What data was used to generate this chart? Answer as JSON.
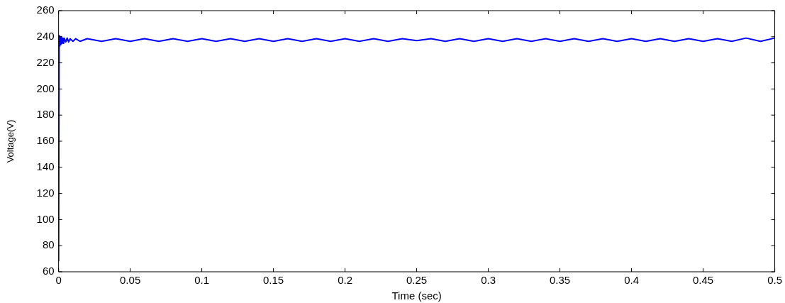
{
  "chart_data": {
    "type": "line",
    "xlabel": "Time (sec)",
    "ylabel": "Voltage(V)",
    "xlim": [
      0,
      0.5
    ],
    "ylim": [
      60,
      260
    ],
    "xticks": [
      0,
      0.05,
      0.1,
      0.15,
      0.2,
      0.25,
      0.3,
      0.35,
      0.4,
      0.45,
      0.5
    ],
    "yticks": [
      60,
      80,
      100,
      120,
      140,
      160,
      180,
      200,
      220,
      240,
      260
    ],
    "grid": false,
    "legend": false,
    "marker": "none",
    "line_style": "solid",
    "series": [
      {
        "color": "#0000ff",
        "x": [
          0,
          0.0004,
          0.0008,
          0.0012,
          0.0016,
          0.002,
          0.0025,
          0.003,
          0.0035,
          0.004,
          0.005,
          0.006,
          0.007,
          0.008,
          0.01,
          0.012,
          0.015,
          0.02,
          0.03,
          0.04,
          0.05,
          0.06,
          0.07,
          0.08,
          0.09,
          0.1,
          0.11,
          0.12,
          0.13,
          0.14,
          0.15,
          0.16,
          0.17,
          0.18,
          0.19,
          0.2,
          0.21,
          0.22,
          0.23,
          0.24,
          0.25,
          0.26,
          0.27,
          0.28,
          0.29,
          0.3,
          0.31,
          0.32,
          0.33,
          0.34,
          0.35,
          0.36,
          0.37,
          0.38,
          0.39,
          0.4,
          0.41,
          0.42,
          0.43,
          0.44,
          0.45,
          0.46,
          0.47,
          0.48,
          0.49,
          0.5
        ],
        "values": [
          68,
          241,
          233,
          240,
          234,
          240,
          235,
          239,
          235,
          239,
          236,
          239,
          236,
          238.5,
          236.5,
          238.5,
          236.5,
          238.5,
          236.5,
          238.5,
          236.5,
          238.5,
          236.5,
          238.5,
          236.5,
          238.5,
          236.5,
          238.5,
          236.5,
          238.5,
          236.5,
          238.5,
          236.5,
          238.5,
          236.5,
          238.5,
          236.5,
          238.5,
          236.5,
          238.5,
          237,
          238.5,
          236.5,
          238.5,
          236.5,
          238.5,
          236.5,
          238.5,
          236.5,
          238.5,
          236.5,
          238.5,
          236.5,
          238.5,
          236.5,
          238.5,
          236.5,
          238.5,
          236.5,
          238.5,
          236.5,
          238.5,
          236.5,
          239,
          236.5,
          239
        ]
      }
    ]
  }
}
